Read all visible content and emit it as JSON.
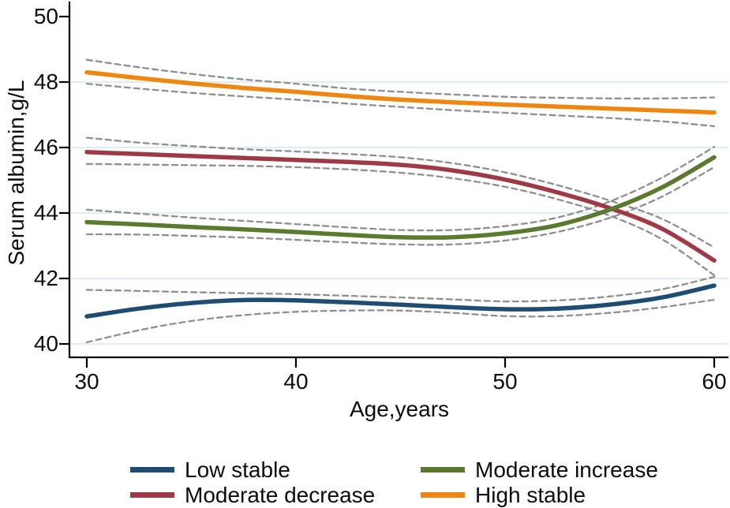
{
  "figure": {
    "background": "#ffffff",
    "text_color": "#0c0c0c",
    "axis_color": "#000000",
    "gridline_color": "#e2edf0"
  },
  "chart_data": {
    "type": "line",
    "title": "",
    "xlabel": "Age,years",
    "ylabel": "Serum albumin,g/L",
    "xlim": [
      30,
      60
    ],
    "ylim": [
      39.6,
      50.5
    ],
    "x_ticks": [
      30,
      40,
      50,
      60
    ],
    "y_ticks": [
      40,
      42,
      44,
      46,
      48,
      50
    ],
    "grid_y": [
      40,
      42,
      44,
      46,
      48
    ],
    "legend_position": "bottom-two-columns",
    "legend_order": [
      "Low stable",
      "Moderate increase",
      "Moderate decrease",
      "High stable"
    ],
    "ci_style": {
      "color": "#8f8f8f",
      "dash": "7 5",
      "meaning": "dashed 95% confidence band"
    },
    "x": [
      30,
      32.5,
      35,
      37.5,
      40,
      42.5,
      45,
      47.5,
      50,
      52.5,
      55,
      57.5,
      60
    ],
    "series": [
      {
        "name": "Low stable",
        "color": "#1e4c72",
        "values": [
          40.84,
          41.08,
          41.25,
          41.34,
          41.33,
          41.27,
          41.2,
          41.12,
          41.06,
          41.08,
          41.2,
          41.42,
          41.78
        ],
        "ci_upper": [
          41.65,
          41.62,
          41.58,
          41.55,
          41.52,
          41.47,
          41.42,
          41.36,
          41.3,
          41.33,
          41.45,
          41.67,
          42.05
        ],
        "ci_lower": [
          40.05,
          40.42,
          40.7,
          40.88,
          40.98,
          41.02,
          41.02,
          40.95,
          40.85,
          40.85,
          40.95,
          41.12,
          41.35
        ]
      },
      {
        "name": "Moderate decrease",
        "color": "#9e3a45",
        "values": [
          45.86,
          45.8,
          45.74,
          45.68,
          45.62,
          45.56,
          45.47,
          45.3,
          45.02,
          44.63,
          44.15,
          43.52,
          42.55
        ],
        "ci_upper": [
          46.3,
          46.15,
          46.04,
          45.95,
          45.88,
          45.8,
          45.7,
          45.52,
          45.24,
          44.85,
          44.38,
          43.82,
          42.95
        ],
        "ci_lower": [
          45.5,
          45.48,
          45.46,
          45.44,
          45.4,
          45.33,
          45.23,
          45.06,
          44.8,
          44.42,
          43.92,
          43.2,
          42.1
        ]
      },
      {
        "name": "Moderate increase",
        "color": "#5a7a2f",
        "values": [
          43.72,
          43.65,
          43.57,
          43.5,
          43.42,
          43.33,
          43.26,
          43.26,
          43.38,
          43.63,
          44.1,
          44.78,
          45.7
        ],
        "ci_upper": [
          44.1,
          43.98,
          43.86,
          43.76,
          43.66,
          43.56,
          43.48,
          43.48,
          43.6,
          43.86,
          44.35,
          45.08,
          46.02
        ],
        "ci_lower": [
          43.35,
          43.34,
          43.3,
          43.25,
          43.18,
          43.1,
          43.04,
          43.04,
          43.16,
          43.42,
          43.85,
          44.5,
          45.4
        ]
      },
      {
        "name": "High stable",
        "color": "#ee8711",
        "values": [
          48.3,
          48.12,
          47.96,
          47.82,
          47.7,
          47.57,
          47.46,
          47.38,
          47.31,
          47.25,
          47.19,
          47.13,
          47.07
        ],
        "ci_upper": [
          48.68,
          48.45,
          48.25,
          48.08,
          47.95,
          47.8,
          47.7,
          47.62,
          47.55,
          47.52,
          47.5,
          47.5,
          47.53
        ],
        "ci_lower": [
          47.95,
          47.8,
          47.67,
          47.56,
          47.46,
          47.34,
          47.24,
          47.14,
          47.06,
          46.98,
          46.9,
          46.8,
          46.65
        ]
      }
    ]
  }
}
